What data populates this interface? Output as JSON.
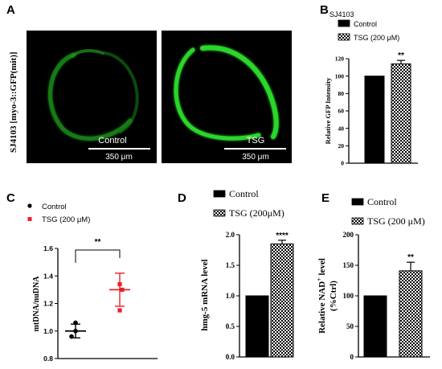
{
  "panels": {
    "A": {
      "letter": "A",
      "strain_label": "SJ4103 [myo-3::GFP(mit)]",
      "images": [
        {
          "label": "Control",
          "scale": "350 μm"
        },
        {
          "label": "TSG",
          "scale": "350 μm"
        }
      ]
    },
    "B": {
      "letter": "B",
      "strain": "SJ4103"
    },
    "C": {
      "letter": "C"
    },
    "D": {
      "letter": "D"
    },
    "E": {
      "letter": "E"
    }
  },
  "colors": {
    "control_bar": "#000000",
    "tsg_pattern": "#000000",
    "tsg_red": "#e8222a",
    "gfp_green": "#2bd62b"
  },
  "chart_data": [
    {
      "panel": "B",
      "type": "bar",
      "categories": [
        "Control",
        "TSG (200 μM)"
      ],
      "values": [
        100,
        114
      ],
      "errors": [
        0,
        4
      ],
      "significance": [
        "",
        "**"
      ],
      "title": "",
      "xlabel": "",
      "ylabel": "Relative GFP Intensity",
      "ylim": [
        0,
        120
      ],
      "yticks": [
        "0",
        "20",
        "40",
        "60",
        "80",
        "100",
        "120"
      ],
      "legend": [
        {
          "name": "Control",
          "style": "solid"
        },
        {
          "name": "TSG (200 μM)",
          "style": "checker"
        }
      ],
      "legend_position": "top-left"
    },
    {
      "panel": "C",
      "type": "scatter",
      "categories": [
        "Control",
        "TSG (200 μM)"
      ],
      "points": [
        [
          1.06,
          1.0,
          0.96
        ],
        [
          1.34,
          1.3,
          1.15
        ]
      ],
      "means": [
        1.0,
        1.3
      ],
      "sd": [
        0.05,
        0.12
      ],
      "significance": "**",
      "ylabel": "mtDNA/nuDNA",
      "ylim": [
        0.8,
        1.6
      ],
      "yticks": [
        "0.8",
        "1.0",
        "1.2",
        "1.4",
        "1.6"
      ],
      "legend": [
        {
          "name": "Control",
          "marker": "circle"
        },
        {
          "name": "TSG (200 μM)",
          "marker": "square"
        }
      ],
      "legend_position": "top-left"
    },
    {
      "panel": "D",
      "type": "bar",
      "categories": [
        "Control",
        "TSG (200μM)"
      ],
      "values": [
        1.0,
        1.85
      ],
      "errors": [
        0,
        0.06
      ],
      "significance": [
        "",
        "****"
      ],
      "ylabel": "hmg-5 mRNA level",
      "ylim": [
        0,
        2.0
      ],
      "yticks": [
        "0.0",
        "0.5",
        "1.0",
        "1.5",
        "2.0"
      ],
      "legend": [
        {
          "name": "Control",
          "style": "solid"
        },
        {
          "name": "TSG (200μM)",
          "style": "checker"
        }
      ],
      "legend_position": "top"
    },
    {
      "panel": "E",
      "type": "bar",
      "categories": [
        "Control",
        "TSG (200 μM)"
      ],
      "values": [
        100,
        141
      ],
      "errors": [
        0,
        14
      ],
      "significance": [
        "",
        "**"
      ],
      "ylabel_line1": "Relative NAD",
      "ylabel_sup": "+",
      "ylabel_tail": " level",
      "ylabel_line2": "(%Ctrl)",
      "ylim": [
        0,
        200
      ],
      "yticks": [
        "0",
        "50",
        "100",
        "150",
        "200"
      ],
      "legend": [
        {
          "name": "Control",
          "style": "solid"
        },
        {
          "name": "TSG (200 μM)",
          "style": "checker"
        }
      ],
      "legend_position": "top"
    }
  ]
}
